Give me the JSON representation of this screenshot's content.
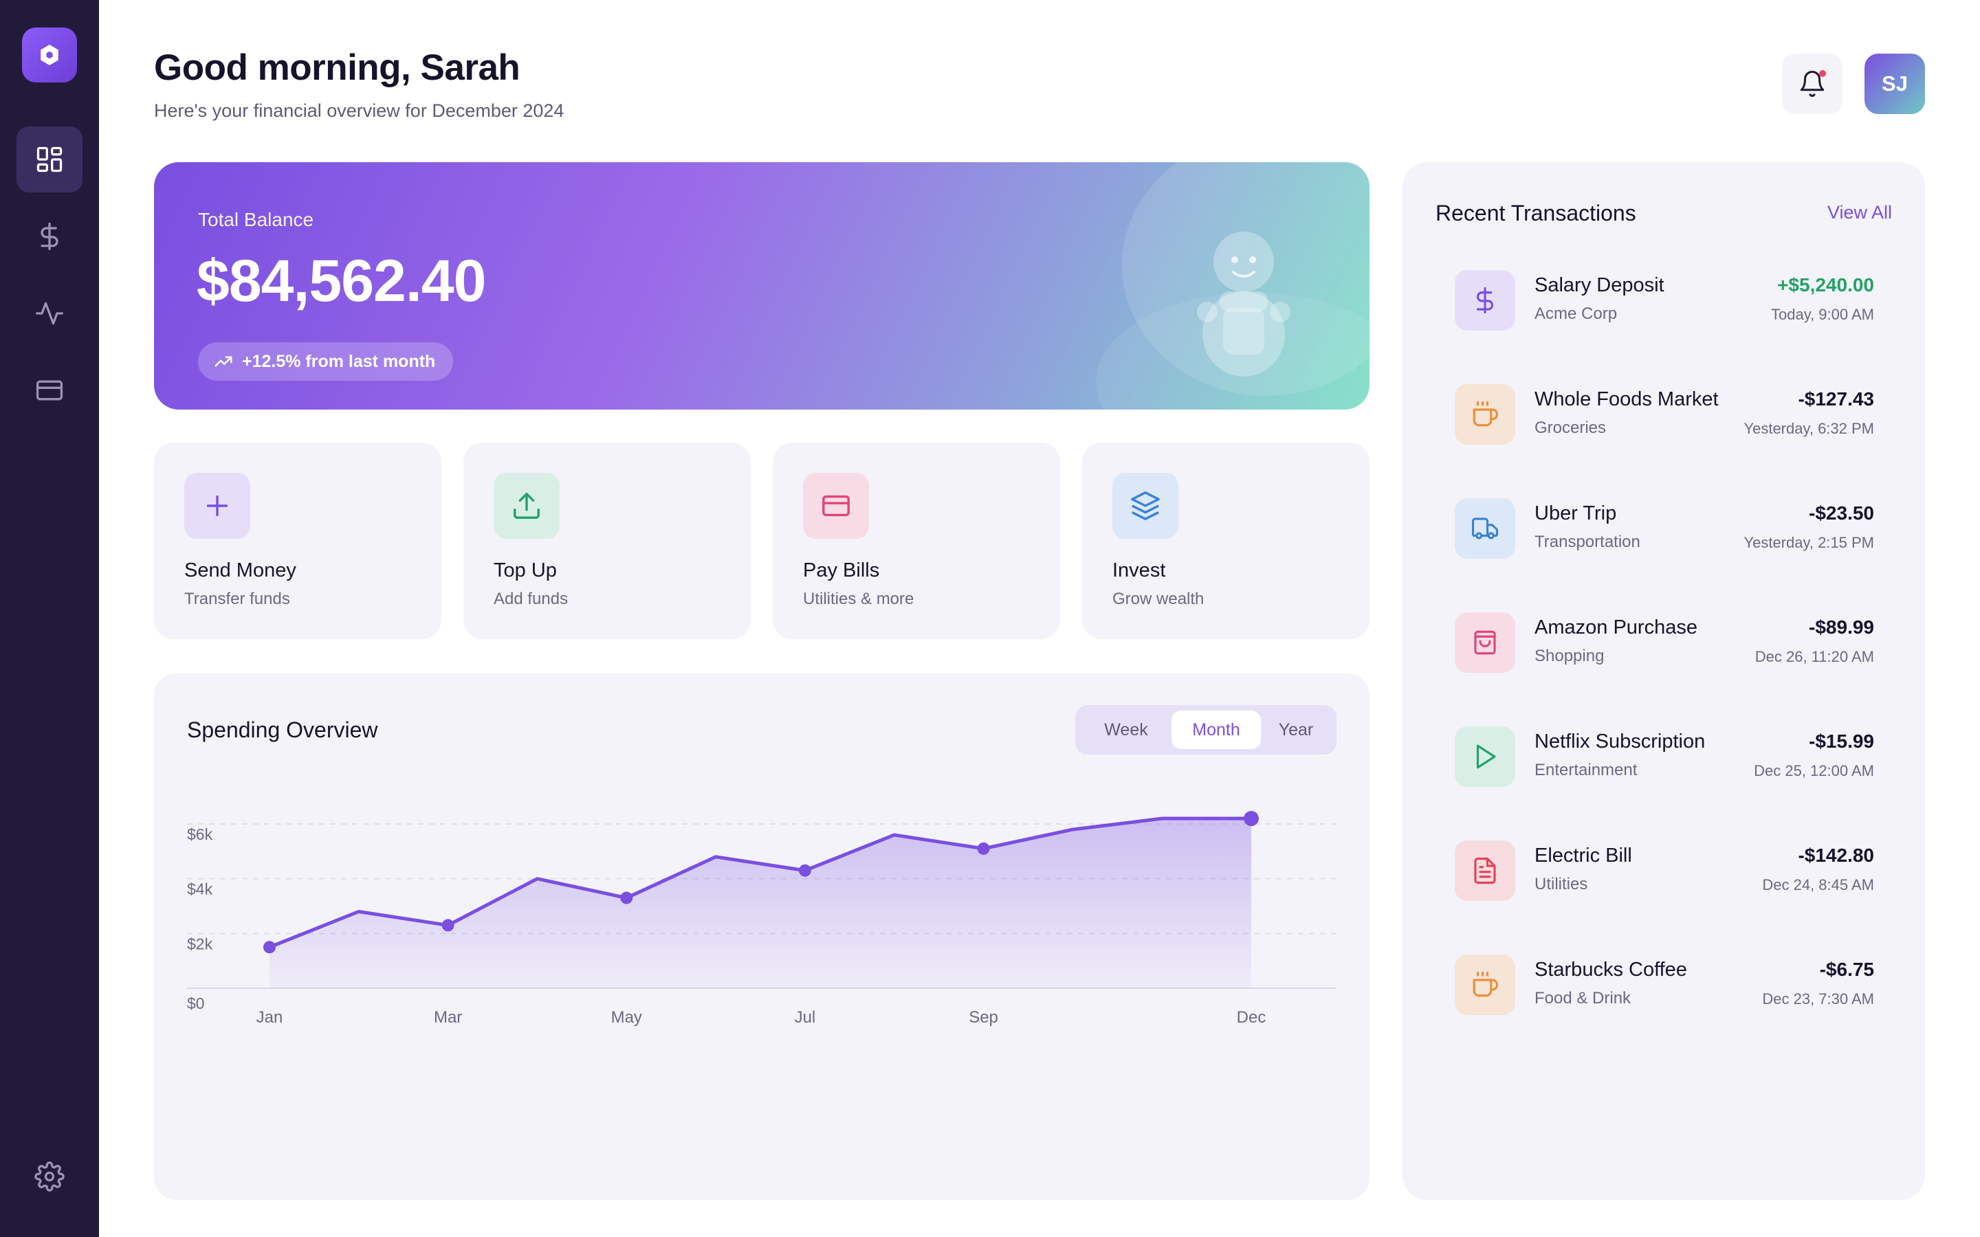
{
  "header": {
    "greeting": "Good morning, Sarah",
    "subtitle": "Here's your financial overview for December 2024",
    "avatar_initials": "SJ"
  },
  "sidebar": {
    "items": [
      {
        "icon": "dashboard-icon",
        "active": true
      },
      {
        "icon": "dollar-icon",
        "active": false
      },
      {
        "icon": "activity-icon",
        "active": false
      },
      {
        "icon": "card-icon",
        "active": false
      }
    ],
    "settings_icon": "gear-icon"
  },
  "balance": {
    "label": "Total Balance",
    "amount": "$84,562.40",
    "change": "+12.5% from last month"
  },
  "actions": [
    {
      "title": "Send Money",
      "subtitle": "Transfer funds",
      "icon": "plus-icon",
      "color": "#7a4fe0",
      "bg": "#e6def9"
    },
    {
      "title": "Top Up",
      "subtitle": "Add funds",
      "icon": "upload-icon",
      "color": "#22a36b",
      "bg": "#d9efe6"
    },
    {
      "title": "Pay Bills",
      "subtitle": "Utilities & more",
      "icon": "credit-card-icon",
      "color": "#e0457a",
      "bg": "#f7dce6"
    },
    {
      "title": "Invest",
      "subtitle": "Grow wealth",
      "icon": "layers-icon",
      "color": "#3b82d6",
      "bg": "#dce8f7"
    }
  ],
  "spending": {
    "title": "Spending Overview",
    "periods": [
      "Week",
      "Month",
      "Year"
    ],
    "active_period": "Month"
  },
  "chart_data": {
    "type": "area",
    "x_labels": [
      "Jan",
      "Mar",
      "May",
      "Jul",
      "Sep",
      "Dec"
    ],
    "x": [
      "Jan",
      "Feb",
      "Mar",
      "Apr",
      "May",
      "Jun",
      "Jul",
      "Aug",
      "Sep",
      "Oct",
      "Nov",
      "Dec"
    ],
    "values": [
      1500,
      2800,
      2300,
      4000,
      3300,
      4800,
      4300,
      5600,
      5100,
      5800,
      6200,
      6200
    ],
    "markers": [
      "Jan",
      "Mar",
      "May",
      "Jul",
      "Sep",
      "Dec"
    ],
    "y_ticks": [
      "$0",
      "$2k",
      "$4k",
      "$6k"
    ],
    "ylim": [
      0,
      6000
    ],
    "color": "#7a4fe0"
  },
  "transactions": {
    "title": "Recent Transactions",
    "view_all": "View All",
    "items": [
      {
        "name": "Salary Deposit",
        "category": "Acme Corp",
        "amount": "+$5,240.00",
        "time": "Today, 9:00 AM",
        "icon": "dollar-icon",
        "color": "#7a4fe0",
        "bg": "#e6def9",
        "positive": true
      },
      {
        "name": "Whole Foods Market",
        "category": "Groceries",
        "amount": "-$127.43",
        "time": "Yesterday, 6:32 PM",
        "icon": "coffee-icon",
        "color": "#e8903a",
        "bg": "#f6e4d6",
        "positive": false
      },
      {
        "name": "Uber Trip",
        "category": "Transportation",
        "amount": "-$23.50",
        "time": "Yesterday, 2:15 PM",
        "icon": "truck-icon",
        "color": "#3b82d6",
        "bg": "#dce8f7",
        "positive": false
      },
      {
        "name": "Amazon Purchase",
        "category": "Shopping",
        "amount": "-$89.99",
        "time": "Dec 26, 11:20 AM",
        "icon": "shopping-bag-icon",
        "color": "#e0457a",
        "bg": "#f7dce6",
        "positive": false
      },
      {
        "name": "Netflix Subscription",
        "category": "Entertainment",
        "amount": "-$15.99",
        "time": "Dec 25, 12:00 AM",
        "icon": "play-icon",
        "color": "#22a36b",
        "bg": "#d9efe6",
        "positive": false
      },
      {
        "name": "Electric Bill",
        "category": "Utilities",
        "amount": "-$142.80",
        "time": "Dec 24, 8:45 AM",
        "icon": "file-icon",
        "color": "#e0455a",
        "bg": "#f7dcdf",
        "positive": false
      },
      {
        "name": "Starbucks Coffee",
        "category": "Food & Drink",
        "amount": "-$6.75",
        "time": "Dec 23, 7:30 AM",
        "icon": "coffee-icon",
        "color": "#e8903a",
        "bg": "#f6e4d6",
        "positive": false
      }
    ]
  }
}
